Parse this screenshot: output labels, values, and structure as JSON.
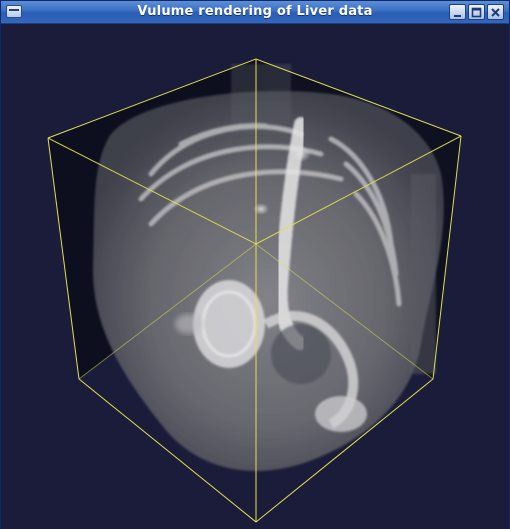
{
  "window": {
    "title": "Vulume rendering of Liver data",
    "controls": [
      "window-menu-icon",
      "minimize-icon",
      "maximize-icon",
      "close-icon"
    ]
  },
  "viewport": {
    "background_color": "#1b1c3a",
    "bounding_box_color": "#e0e050",
    "content": "volume-rendering"
  }
}
